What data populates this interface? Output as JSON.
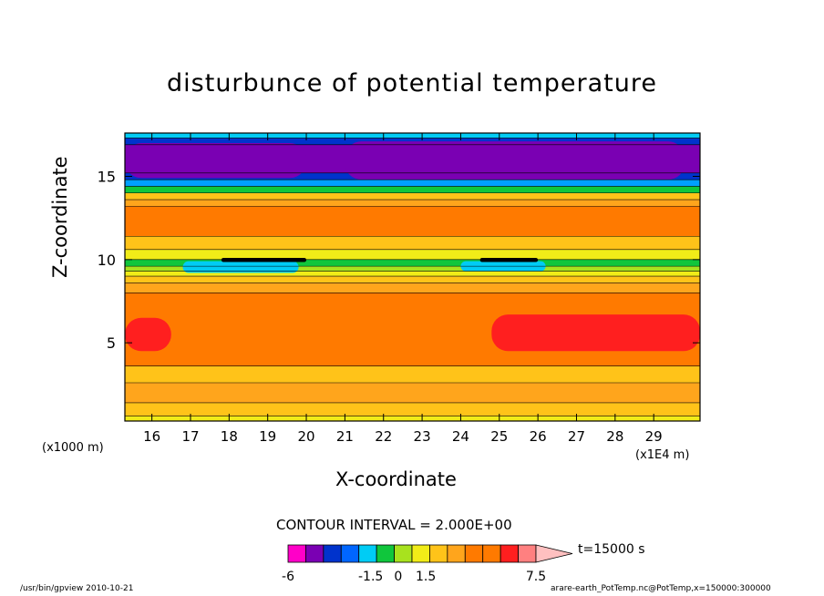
{
  "figure": {
    "title": "disturbunce of potential temperature",
    "x_unit_label": "(x1000 m)",
    "x_scale_label": "(x1E4 m)",
    "contour_interval": "CONTOUR INTERVAL = 2.000E+00",
    "time_label": "t=15000 s",
    "footer_left": "/usr/bin/gpview   2010-10-21",
    "footer_right": "arare-earth_PotTemp.nc@PotTemp,x=150000:300000"
  },
  "chart_data": {
    "type": "heatmap",
    "title": "disturbunce of potential temperature",
    "xlabel": "X-coordinate",
    "ylabel": "Z-coordinate",
    "x_unit": "(x1000 m)",
    "x_scale": "(x1E4 m)",
    "xlim": [
      15.3,
      30.2
    ],
    "ylim": [
      0.3,
      17.6
    ],
    "xticks": [
      "16",
      "17",
      "18",
      "19",
      "20",
      "21",
      "22",
      "23",
      "24",
      "25",
      "26",
      "27",
      "28",
      "29"
    ],
    "xtick_values": [
      16,
      17,
      18,
      19,
      20,
      21,
      22,
      23,
      24,
      25,
      26,
      27,
      28,
      29
    ],
    "yticks": [
      "5",
      "10",
      "15"
    ],
    "ytick_values": [
      5,
      10,
      15
    ],
    "contour_interval": 2.0,
    "time": "t=15000 s",
    "layers": [
      {
        "z": [
          0.3,
          0.6
        ],
        "color": "#f1ec18"
      },
      {
        "z": [
          0.6,
          1.4
        ],
        "color": "#ffc319"
      },
      {
        "z": [
          1.4,
          2.6
        ],
        "color": "#ffa51c"
      },
      {
        "z": [
          2.6,
          3.6
        ],
        "color": "#ffc319"
      },
      {
        "z": [
          3.6,
          8.0
        ],
        "color": "#ff7a00"
      },
      {
        "z": [
          8.0,
          8.6
        ],
        "color": "#ffa51c"
      },
      {
        "z": [
          8.6,
          9.0
        ],
        "color": "#ffc319"
      },
      {
        "z": [
          9.0,
          9.3
        ],
        "color": "#f1ec18"
      },
      {
        "z": [
          9.3,
          9.6
        ],
        "color": "#a8e21e"
      },
      {
        "z": [
          9.6,
          10.0
        ],
        "color": "#10c63c"
      },
      {
        "z": [
          10.0,
          10.6
        ],
        "color": "#f1ec18"
      },
      {
        "z": [
          10.6,
          11.4
        ],
        "color": "#ffc319"
      },
      {
        "z": [
          11.4,
          13.2
        ],
        "color": "#ff7a00"
      },
      {
        "z": [
          13.2,
          13.6
        ],
        "color": "#ffa51c"
      },
      {
        "z": [
          13.6,
          14.0
        ],
        "color": "#ffc319"
      },
      {
        "z": [
          14.0,
          14.4
        ],
        "color": "#10c63c"
      },
      {
        "z": [
          14.4,
          14.8
        ],
        "color": "#00a0ff"
      },
      {
        "z": [
          14.8,
          15.2
        ],
        "color": "#0033cc"
      },
      {
        "z": [
          15.2,
          16.9
        ],
        "color": "#7a00b3"
      },
      {
        "z": [
          16.9,
          17.3
        ],
        "color": "#0033cc"
      },
      {
        "z": [
          17.3,
          17.6
        ],
        "color": "#00ccf5"
      }
    ],
    "features": [
      {
        "name": "warm-anomaly-left",
        "x": [
          15.3,
          16.5
        ],
        "z": [
          4.5,
          6.5
        ],
        "color": "#ff1f1f"
      },
      {
        "name": "warm-anomaly-right",
        "x": [
          24.8,
          30.2
        ],
        "z": [
          4.5,
          6.7
        ],
        "color": "#ff1f1f"
      },
      {
        "name": "cold-core-left",
        "x": [
          15.3,
          20.0
        ],
        "z": [
          14.9,
          17.0
        ],
        "color": "#7a00b3"
      },
      {
        "name": "cold-core-right",
        "x": [
          21.0,
          29.8
        ],
        "z": [
          14.8,
          17.1
        ],
        "color": "#7a00b3"
      },
      {
        "name": "cyan-pocket-left",
        "x": [
          16.8,
          19.8
        ],
        "z": [
          9.2,
          9.9
        ],
        "color": "#00ccf5"
      },
      {
        "name": "cyan-pocket-right",
        "x": [
          24.0,
          26.2
        ],
        "z": [
          9.3,
          9.9
        ],
        "color": "#00ccf5"
      },
      {
        "name": "dark-band-left",
        "x": [
          17.8,
          20.0
        ],
        "z": [
          9.85,
          10.1
        ],
        "color": "#000000"
      },
      {
        "name": "dark-band-right",
        "x": [
          24.5,
          26.0
        ],
        "z": [
          9.85,
          10.1
        ],
        "color": "#000000"
      }
    ],
    "colorbar": {
      "colors": [
        "#ff00c8",
        "#7a00b3",
        "#0033cc",
        "#0066ff",
        "#00ccf5",
        "#10c63c",
        "#a8e21e",
        "#f1ec18",
        "#ffc319",
        "#ffa51c",
        "#ff7a00",
        "#ff7a00",
        "#ff1f1f",
        "#ff8080",
        "#ffc0c0"
      ],
      "labels": [
        "-6",
        "-1.5",
        "0",
        "1.5",
        "7.5"
      ],
      "label_values": [
        -6,
        -1.5,
        0,
        1.5,
        7.5
      ]
    }
  }
}
